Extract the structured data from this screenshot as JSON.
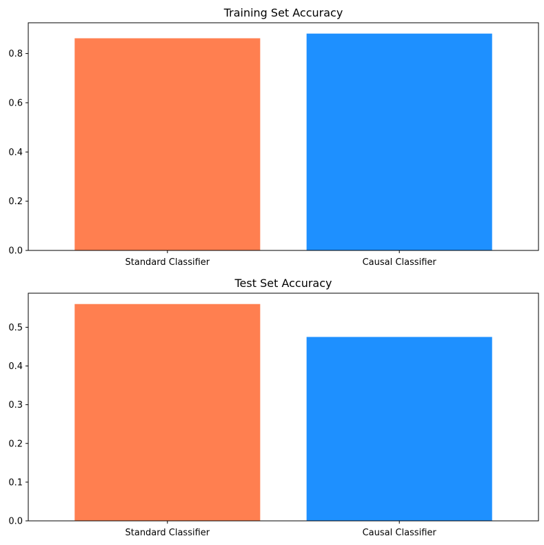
{
  "chart_data": [
    {
      "type": "bar",
      "title": "Training Set Accuracy",
      "categories": [
        "Standard Classifier",
        "Causal Classifier"
      ],
      "values": [
        0.862,
        0.881
      ],
      "colors": [
        "#ff7f50",
        "#1e90ff"
      ],
      "ylim": [
        0,
        0.925
      ],
      "yticks": [
        0.0,
        0.2,
        0.4,
        0.6,
        0.8
      ],
      "ytick_labels": [
        "0.0",
        "0.2",
        "0.4",
        "0.6",
        "0.8"
      ],
      "xlabel": "",
      "ylabel": "",
      "grid": false
    },
    {
      "type": "bar",
      "title": "Test Set Accuracy",
      "categories": [
        "Standard Classifier",
        "Causal Classifier"
      ],
      "values": [
        0.56,
        0.475
      ],
      "colors": [
        "#ff7f50",
        "#1e90ff"
      ],
      "ylim": [
        0,
        0.588
      ],
      "yticks": [
        0.0,
        0.1,
        0.2,
        0.3,
        0.4,
        0.5
      ],
      "ytick_labels": [
        "0.0",
        "0.1",
        "0.2",
        "0.3",
        "0.4",
        "0.5"
      ],
      "xlabel": "",
      "ylabel": "",
      "grid": false
    }
  ]
}
